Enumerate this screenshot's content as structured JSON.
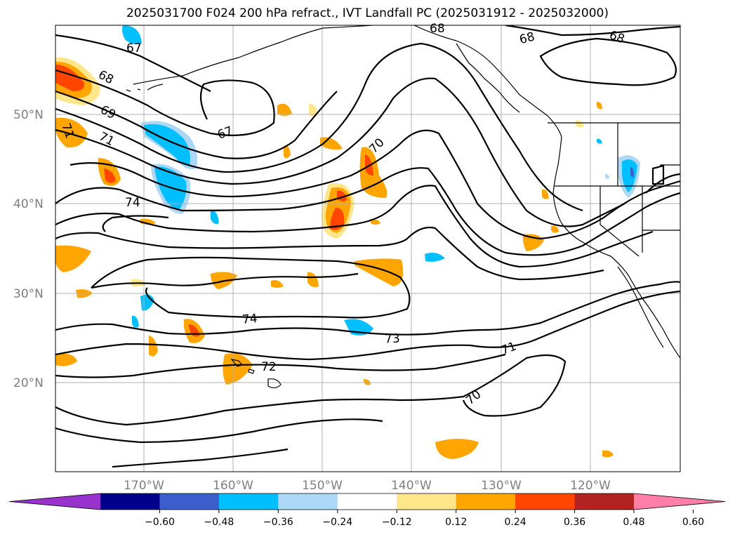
{
  "title": "2025031700 F024 200 hPa refract., IVT Landfall PC (2025031912 - 2025032000)",
  "map": {
    "lat_labels": [
      "50°N",
      "40°N",
      "30°N",
      "20°N"
    ],
    "lon_labels": [
      "170°W",
      "160°W",
      "150°W",
      "140°W",
      "130°W",
      "120°W"
    ],
    "contour_labels": [
      "67",
      "68",
      "69",
      "71",
      "67",
      "70",
      "74",
      "68",
      "68",
      "68",
      "74",
      "73",
      "72",
      "71",
      "70",
      "71"
    ]
  },
  "colorbar": {
    "ticks": [
      "−0.60",
      "−0.48",
      "−0.36",
      "−0.24",
      "−0.12",
      "0.12",
      "0.24",
      "0.36",
      "0.48",
      "0.60"
    ],
    "colors": [
      "#9932cc",
      "#00008b",
      "#3a5fcd",
      "#00bfff",
      "#add8f5",
      "#ffffff",
      "#ffe68a",
      "#ffa500",
      "#ff4500",
      "#b22222",
      "#ff7fa8"
    ]
  }
}
